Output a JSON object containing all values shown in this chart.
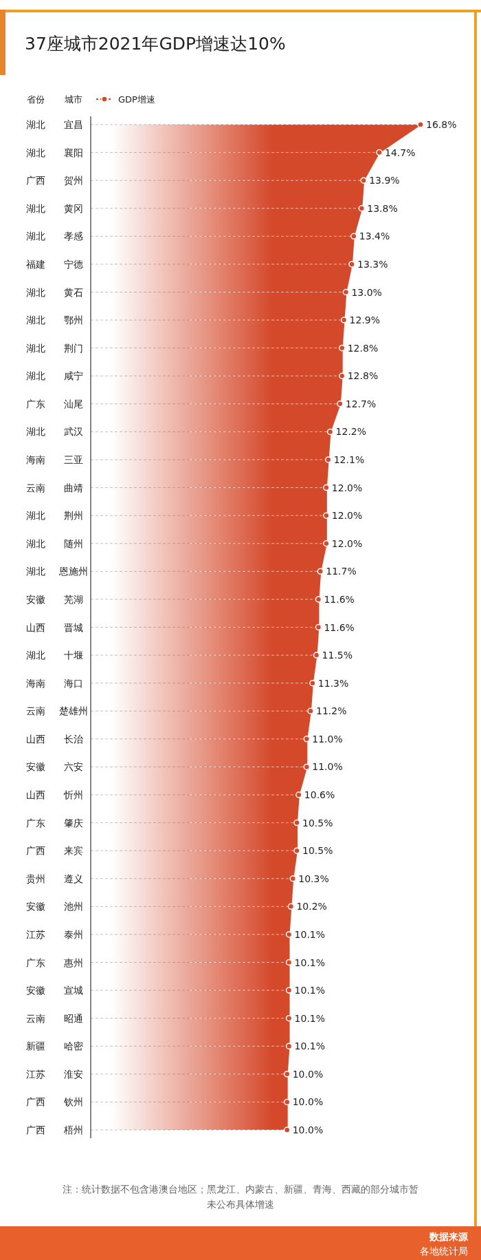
{
  "chart_data": {
    "type": "area",
    "orientation": "horizontal",
    "title": "37座城市2021年GDP增速达10%",
    "categories": [
      "宜昌",
      "襄阳",
      "贺州",
      "黄冈",
      "孝感",
      "宁德",
      "黄石",
      "鄂州",
      "荆门",
      "咸宁",
      "汕尾",
      "武汉",
      "三亚",
      "曲靖",
      "荆州",
      "随州",
      "恩施州",
      "芜湖",
      "晋城",
      "十堰",
      "海口",
      "楚雄州",
      "长治",
      "六安",
      "忻州",
      "肇庆",
      "来宾",
      "遵义",
      "池州",
      "泰州",
      "惠州",
      "宣城",
      "昭通",
      "哈密",
      "淮安",
      "钦州",
      "梧州"
    ],
    "y2_categories": [
      "湖北",
      "湖北",
      "广西",
      "湖北",
      "湖北",
      "福建",
      "湖北",
      "湖北",
      "湖北",
      "湖北",
      "广东",
      "湖北",
      "海南",
      "云南",
      "湖北",
      "湖北",
      "湖北",
      "安徽",
      "山西",
      "湖北",
      "海南",
      "云南",
      "山西",
      "安徽",
      "山西",
      "广东",
      "广西",
      "贵州",
      "安徽",
      "江苏",
      "广东",
      "安徽",
      "云南",
      "新疆",
      "江苏",
      "广西",
      "广西"
    ],
    "series": [
      {
        "name": "GDP增速",
        "color": "#d5492b",
        "values": [
          16.8,
          14.7,
          13.9,
          13.8,
          13.4,
          13.3,
          13.0,
          12.9,
          12.8,
          12.8,
          12.7,
          12.2,
          12.1,
          12.0,
          12.0,
          12.0,
          11.7,
          11.6,
          11.6,
          11.5,
          11.3,
          11.2,
          11.0,
          11.0,
          10.6,
          10.5,
          10.5,
          10.3,
          10.2,
          10.1,
          10.1,
          10.1,
          10.1,
          10.1,
          10.0,
          10.0,
          10.0
        ],
        "value_labels": [
          "16.8%",
          "14.7%",
          "13.9%",
          "13.8%",
          "13.4%",
          "13.3%",
          "13.0%",
          "12.9%",
          "12.8%",
          "12.8%",
          "12.7%",
          "12.2%",
          "12.1%",
          "12.0%",
          "12.0%",
          "12.0%",
          "11.7%",
          "11.6%",
          "11.6%",
          "11.5%",
          "11.3%",
          "11.2%",
          "11.0%",
          "11.0%",
          "10.6%",
          "10.5%",
          "10.5%",
          "10.3%",
          "10.2%",
          "10.1%",
          "10.1%",
          "10.1%",
          "10.1%",
          "10.1%",
          "10.0%",
          "10.0%",
          "10.0%"
        ]
      }
    ],
    "marker": "circle",
    "grid": "y",
    "legend": "top left",
    "annotations": [
      "省份",
      "城市",
      "注：统计数据不包含港澳台地区；黑龙江、内蒙古、新疆、青海、西藏的部分城市暂未公布具体增速",
      "数据来源",
      "各地统计局"
    ]
  }
}
